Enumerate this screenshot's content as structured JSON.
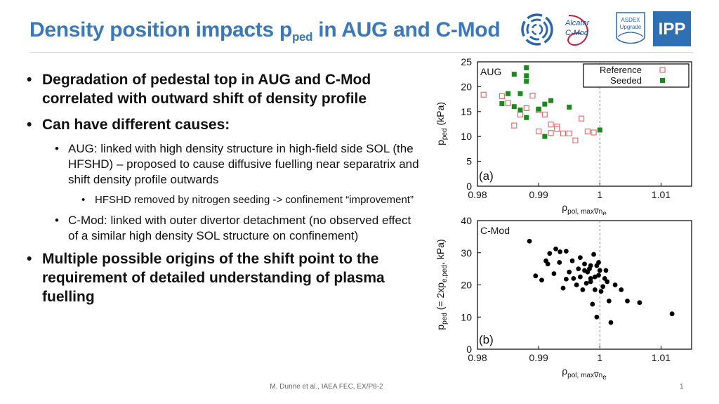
{
  "slide": {
    "title_main": "Density position impacts p",
    "title_sub": "ped",
    "title_end": " in AUG and C-Mod",
    "footer": "M. Dunne et al., IAEA FEC, EX/P8-2",
    "page_number": "1"
  },
  "logos": {
    "alcator_line1": "Alcator",
    "alcator_line2": "C-Mod",
    "asdex_line1": "ASDEX",
    "asdex_line2": "Upgrade",
    "ipp": "IPP"
  },
  "bullets": {
    "b1": "Degradation of pedestal top in AUG and C-Mod correlated with outward shift of density profile",
    "b2": "Can have different causes:",
    "b2_1": "AUG: linked with high density structure in high-field side SOL (the HFSHD) – proposed to cause diffusive fuelling near separatrix and shift density profile outwards",
    "b2_1_1": "HFSHD removed by nitrogen seeding -> confinement “improvement”",
    "b2_2": "C-Mod: linked with outer divertor detachment (no observed effect of a similar high density SOL structure on confinement)",
    "b3": "Multiple possible origins of the shift point to the requirement of detailed understanding of plasma fuelling"
  },
  "chart_data": [
    {
      "type": "scatter",
      "panel_label": "(a)",
      "device_label": "AUG",
      "ylabel_main": "p",
      "ylabel_sub": "ped",
      "ylabel_end": " (kPa)",
      "xlabel_main": "ρ",
      "xlabel_sub": "pol, max∇n",
      "xlabel_sub2": "e",
      "xlim": [
        0.98,
        1.015
      ],
      "ylim": [
        0,
        25
      ],
      "xticks": [
        "0.98",
        "0.99",
        "1",
        "1.01"
      ],
      "yticks": [
        "0",
        "5",
        "10",
        "15",
        "20",
        "25"
      ],
      "separatrix_x": 1.0,
      "legend_position": "top-right",
      "series": [
        {
          "name": "Reference",
          "marker": "open-square",
          "color": "#e07070",
          "x": [
            0.981,
            0.984,
            0.985,
            0.986,
            0.987,
            0.988,
            0.989,
            0.99,
            0.99,
            0.991,
            0.992,
            0.992,
            0.993,
            0.993,
            0.994,
            0.995,
            0.996,
            0.997,
            0.998,
            0.999
          ],
          "y": [
            18.4,
            18.1,
            16.7,
            12.2,
            14.4,
            15.7,
            18.2,
            15.3,
            11.0,
            14.4,
            12.4,
            10.7,
            12.0,
            11.5,
            10.6,
            10.6,
            9.2,
            13.6,
            11.0,
            10.8
          ]
        },
        {
          "name": "Seeded",
          "marker": "filled-square",
          "color": "#1a8a1a",
          "x": [
            0.984,
            0.985,
            0.986,
            0.986,
            0.987,
            0.987,
            0.988,
            0.988,
            0.988,
            0.988,
            0.99,
            0.991,
            0.991,
            0.992,
            0.995,
            1.0
          ],
          "y": [
            16.6,
            18.6,
            22.5,
            16.0,
            15.3,
            18.6,
            23.8,
            22.2,
            21.1,
            13.8,
            15.5,
            16.5,
            10.0,
            17.2,
            15.9,
            11.3
          ]
        }
      ]
    },
    {
      "type": "scatter",
      "panel_label": "(b)",
      "device_label": "C-Mod",
      "ylabel_main": "p",
      "ylabel_sub": "ped",
      "ylabel_end": " (= 2xp",
      "ylabel_sub2": "e,ped",
      "ylabel_end2": ", kPa)",
      "xlabel_main": "ρ",
      "xlabel_sub": "pol, max∇n",
      "xlabel_sub2": "e",
      "xlim": [
        0.98,
        1.015
      ],
      "ylim": [
        0,
        40
      ],
      "xticks": [
        "0.98",
        "0.99",
        "1",
        "1.01"
      ],
      "yticks": [
        "0",
        "10",
        "20",
        "30",
        "40"
      ],
      "separatrix_x": 1.0,
      "series": [
        {
          "name": "",
          "marker": "filled-circle",
          "color": "#000000",
          "x": [
            0.9885,
            0.9895,
            0.9905,
            0.9912,
            0.9918,
            0.9928,
            0.9934,
            0.9945,
            0.995,
            0.9957,
            0.9962,
            0.9968,
            0.9975,
            0.998,
            0.9985,
            0.999,
            0.9995,
            1.0,
            1.0008,
            1.0015,
            1.0025,
            1.0035,
            1.0045,
            1.0065,
            1.0118,
            0.9915,
            0.9925,
            0.994,
            0.9965,
            0.9985,
            0.9998,
            1.0005,
            0.9992,
            0.9978,
            0.9998,
            0.9983,
            1.0012,
            0.9972,
            0.9988,
            0.9995,
            1.0002,
            0.9968,
            0.9975,
            0.9985,
            0.9955,
            0.9992,
            1.001,
            1.0018,
            0.9935,
            0.9945
          ],
          "y": [
            33.6,
            22.8,
            21.5,
            27.5,
            29.8,
            31.2,
            27.0,
            21.8,
            24.0,
            22.0,
            20.0,
            28.5,
            26.5,
            24.0,
            22.0,
            29.5,
            26.0,
            24.5,
            22.0,
            15.0,
            20.0,
            18.5,
            15.0,
            14.5,
            11.0,
            26.5,
            23.5,
            19.0,
            25.0,
            21.0,
            23.0,
            19.5,
            22.5,
            20.5,
            27.0,
            25.0,
            21.0,
            18.5,
            14.0,
            10.0,
            18.0,
            22.5,
            24.5,
            26.0,
            27.5,
            18.5,
            24.5,
            8.3,
            30.3,
            30.5
          ]
        }
      ]
    }
  ]
}
